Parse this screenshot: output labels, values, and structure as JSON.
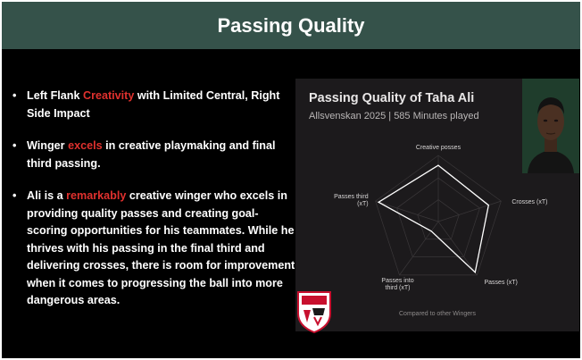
{
  "header": {
    "title": "Passing Quality"
  },
  "bullets": [
    {
      "pre": "Left Flank ",
      "highlight": "Creativity",
      "post": " with Limited Central, Right Side Impact"
    },
    {
      "pre": "Winger ",
      "highlight": "excels",
      "post": " in creative playmaking and final third passing."
    },
    {
      "pre": "Ali is a ",
      "highlight": "remarkably",
      "post": " creative winger who excels in providing quality passes and creating goal-scoring opportunities for his teammates. While he thrives with his passing in the final third and delivering crosses, there is room for improvement when it comes to progressing the ball into more dangerous areas."
    }
  ],
  "card": {
    "title": "Passing Quality of Taha Ali",
    "subtitle": "Allsvenskan 2025 | 585 Minutes played",
    "note": "Compared to other Wingers",
    "axes": [
      {
        "label_lines": [
          "Creative posses"
        ],
        "value": 0.85
      },
      {
        "label_lines": [
          "Crosses (xT)"
        ],
        "value": 0.8
      },
      {
        "label_lines": [
          "Passes (xT)"
        ],
        "value": 0.95
      },
      {
        "label_lines": [
          "Passes into",
          "third (xT)"
        ],
        "value": 0.18
      },
      {
        "label_lines": [
          "Passes third",
          "(xT)"
        ],
        "value": 0.95
      }
    ]
  },
  "colors": {
    "header_bg": "#35524a",
    "highlight": "#e0312e",
    "card_bg": "#1c1a1c",
    "radar_stroke": "#ffffff",
    "grid": "#3a3739"
  },
  "icons": {
    "club_logo": "shield-crest-icon",
    "player_photo": "player-portrait-icon"
  }
}
